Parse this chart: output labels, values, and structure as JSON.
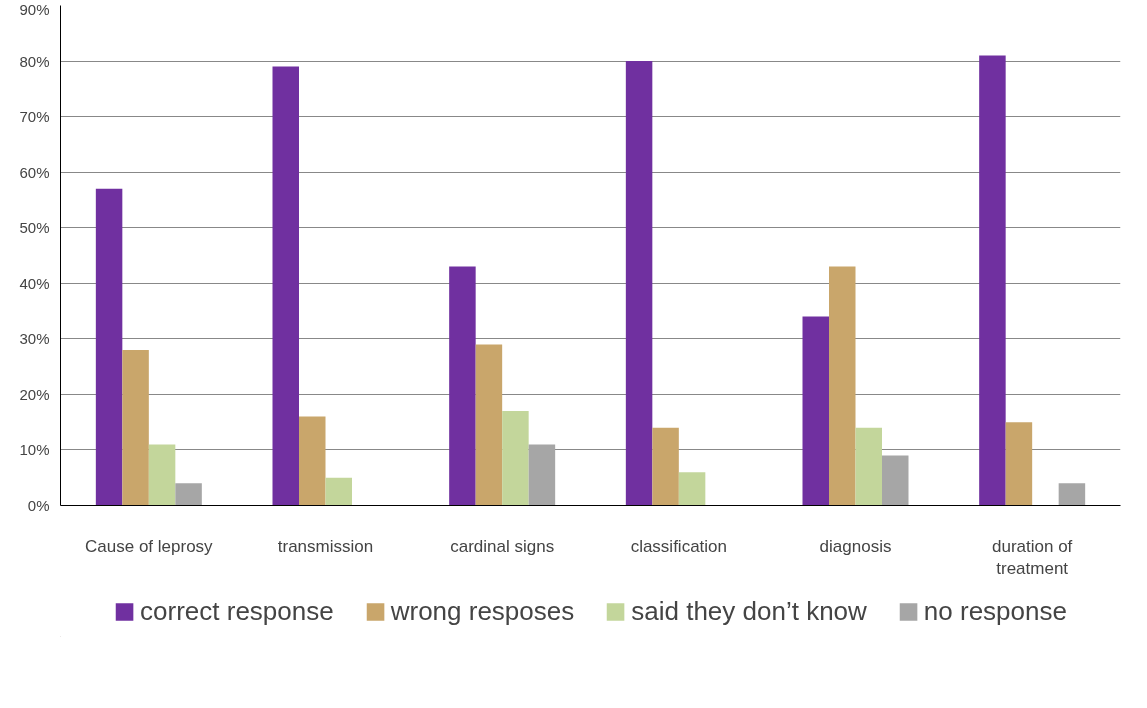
{
  "chart_data": {
    "type": "bar",
    "categories": [
      "Cause of leprosy",
      "transmission",
      "cardinal signs",
      "classification",
      "diagnosis",
      "duration of treatment"
    ],
    "series": [
      {
        "name": "correct response",
        "color": "#7030a0",
        "values": [
          57,
          79,
          43,
          80,
          34,
          81
        ]
      },
      {
        "name": "wrong resposes",
        "color": "#c9a66b",
        "values": [
          28,
          16,
          29,
          14,
          43,
          15
        ]
      },
      {
        "name": "said they don’t know",
        "color": "#c3d69b",
        "values": [
          11,
          5,
          17,
          6,
          14,
          null
        ]
      },
      {
        "name": "no response",
        "color": "#a6a6a6",
        "values": [
          4,
          null,
          11,
          null,
          9,
          4
        ]
      }
    ],
    "ylim": [
      0,
      90
    ],
    "yticks": [
      {
        "value": 0,
        "label": "0%"
      },
      {
        "value": 10,
        "label": "10%"
      },
      {
        "value": 20,
        "label": "20%"
      },
      {
        "value": 30,
        "label": "30%"
      },
      {
        "value": 40,
        "label": "40%"
      },
      {
        "value": 50,
        "label": "50%"
      },
      {
        "value": 60,
        "label": "60%"
      },
      {
        "value": 70,
        "label": "70%"
      },
      {
        "value": 80,
        "label": "80%"
      },
      {
        "value": 90,
        "label": "90%"
      }
    ],
    "grid": "y",
    "legend": "bottom"
  }
}
